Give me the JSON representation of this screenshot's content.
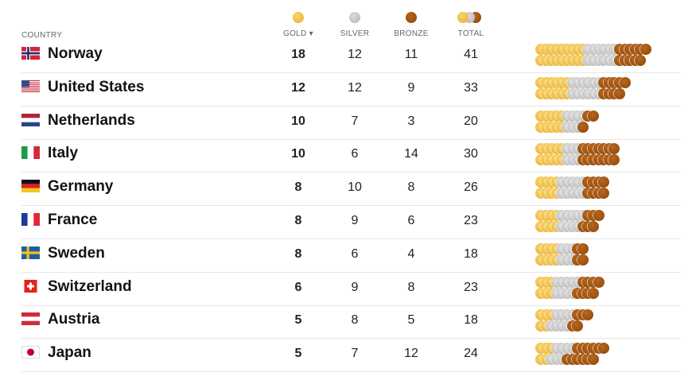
{
  "header": {
    "country_label": "COUNTRY",
    "columns": [
      {
        "key": "gold",
        "label": "GOLD ▾",
        "icon": "gold-medal-icon"
      },
      {
        "key": "silver",
        "label": "SILVER",
        "icon": "silver-medal-icon"
      },
      {
        "key": "bronze",
        "label": "BRONZE",
        "icon": "bronze-medal-icon"
      },
      {
        "key": "total",
        "label": "TOTAL",
        "icon": "total-medals-icon"
      }
    ],
    "sort_indicator": "▾"
  },
  "colors": {
    "gold": "#efbb3f",
    "silver": "#c6c6c6",
    "bronze": "#9a520f",
    "separator": "#e6e6e6"
  },
  "rows": [
    {
      "country": "Norway",
      "flag": "norway",
      "gold": 18,
      "silver": 12,
      "bronze": 11,
      "total": 41
    },
    {
      "country": "United States",
      "flag": "usa",
      "gold": 12,
      "silver": 12,
      "bronze": 9,
      "total": 33
    },
    {
      "country": "Netherlands",
      "flag": "netherlands",
      "gold": 10,
      "silver": 7,
      "bronze": 3,
      "total": 20
    },
    {
      "country": "Italy",
      "flag": "italy",
      "gold": 10,
      "silver": 6,
      "bronze": 14,
      "total": 30
    },
    {
      "country": "Germany",
      "flag": "germany",
      "gold": 8,
      "silver": 10,
      "bronze": 8,
      "total": 26
    },
    {
      "country": "France",
      "flag": "france",
      "gold": 8,
      "silver": 9,
      "bronze": 6,
      "total": 23
    },
    {
      "country": "Sweden",
      "flag": "sweden",
      "gold": 8,
      "silver": 6,
      "bronze": 4,
      "total": 18
    },
    {
      "country": "Switzerland",
      "flag": "switzerland",
      "gold": 6,
      "silver": 9,
      "bronze": 8,
      "total": 23
    },
    {
      "country": "Austria",
      "flag": "austria",
      "gold": 5,
      "silver": 8,
      "bronze": 5,
      "total": 18
    },
    {
      "country": "Japan",
      "flag": "japan",
      "gold": 5,
      "silver": 7,
      "bronze": 12,
      "total": 24
    }
  ],
  "chart_data": {
    "type": "table",
    "title": "",
    "categories": [
      "Norway",
      "United States",
      "Netherlands",
      "Italy",
      "Germany",
      "France",
      "Sweden",
      "Switzerland",
      "Austria",
      "Japan"
    ],
    "series": [
      {
        "name": "Gold",
        "values": [
          18,
          12,
          10,
          10,
          8,
          8,
          8,
          6,
          5,
          5
        ]
      },
      {
        "name": "Silver",
        "values": [
          12,
          12,
          7,
          6,
          10,
          9,
          6,
          9,
          8,
          7
        ]
      },
      {
        "name": "Bronze",
        "values": [
          11,
          9,
          3,
          14,
          8,
          6,
          4,
          8,
          5,
          12
        ]
      },
      {
        "name": "Total",
        "values": [
          41,
          33,
          20,
          30,
          26,
          23,
          18,
          23,
          18,
          24
        ]
      }
    ],
    "sorted_by": "Gold (descending)",
    "visual": "medal count table with pictograph of overlapping coins (two rows per country)"
  }
}
